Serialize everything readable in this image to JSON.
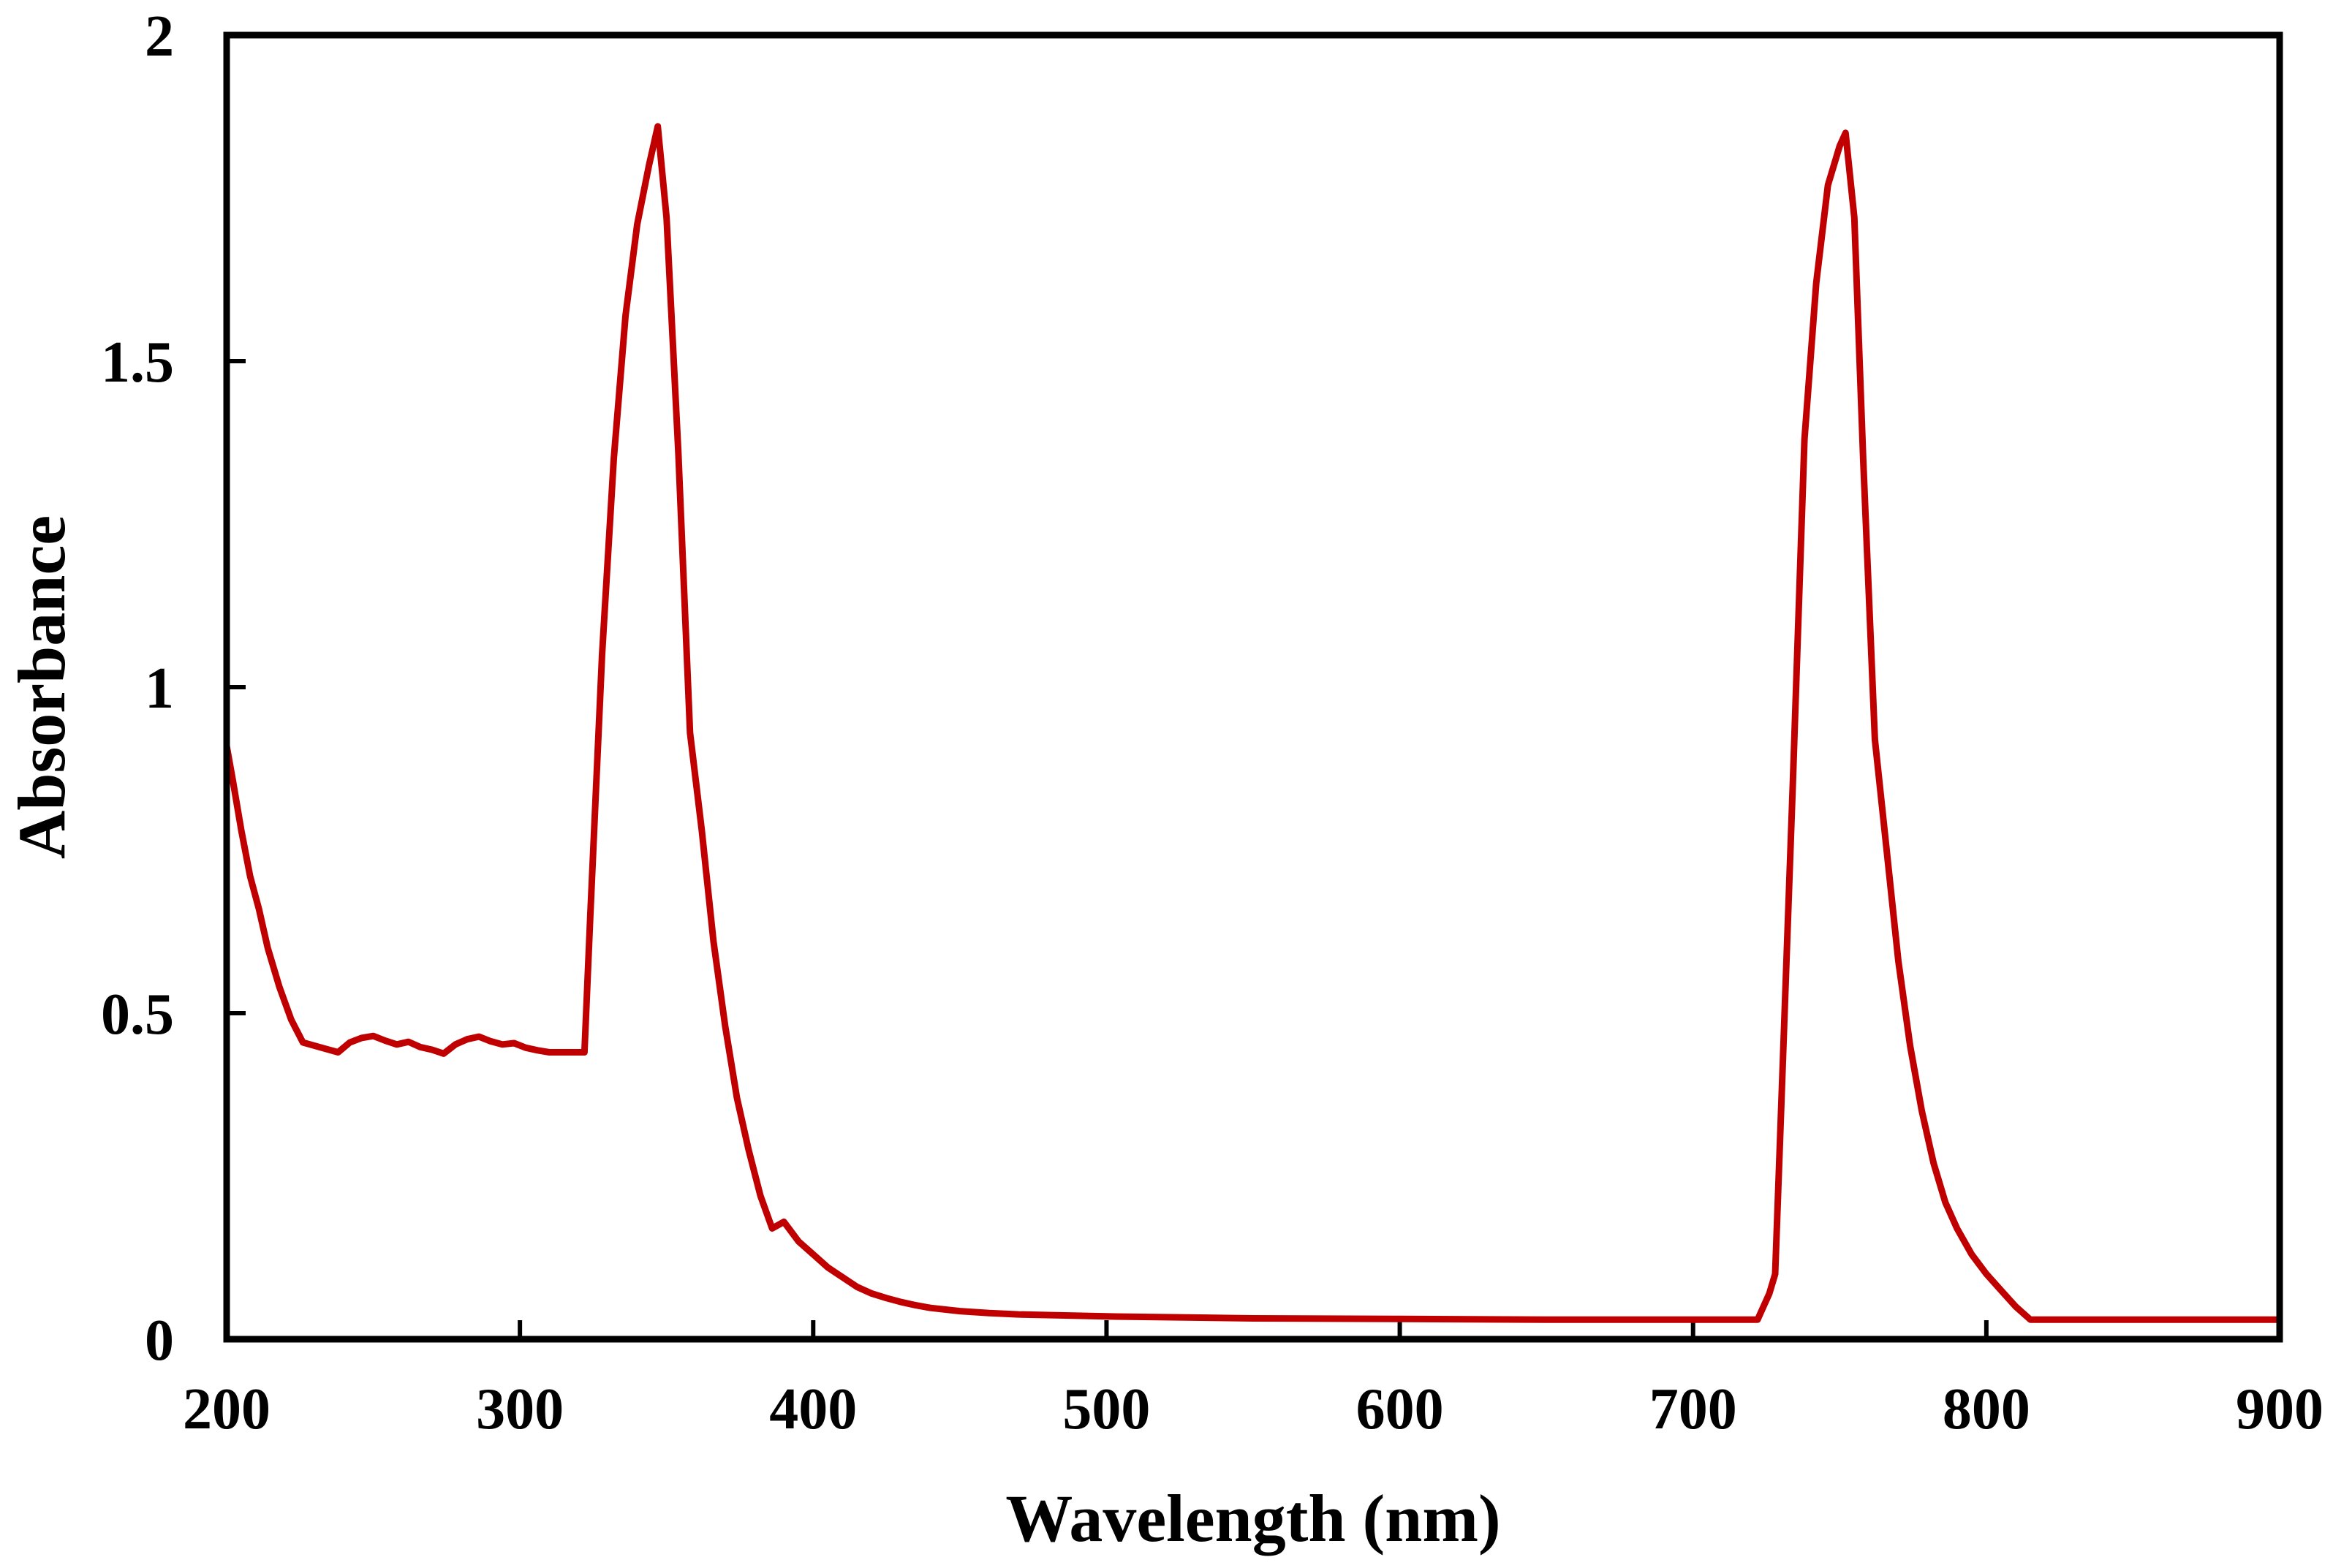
{
  "chart_data": {
    "type": "line",
    "title": "",
    "xlabel": "Wavelength (nm)",
    "ylabel": "Absorbance",
    "xlim": [
      200,
      900
    ],
    "ylim": [
      0,
      2
    ],
    "xticks": [
      200,
      300,
      400,
      500,
      600,
      700,
      800,
      900
    ],
    "yticks": [
      0,
      0.5,
      1,
      1.5,
      2
    ],
    "xtick_labels": [
      "200",
      "300",
      "400",
      "500",
      "600",
      "700",
      "800",
      "900"
    ],
    "ytick_labels": [
      "0",
      "0.5",
      "1",
      "1.5",
      "2"
    ],
    "grid": false,
    "legend": "none",
    "series": [
      {
        "name": "Absorbance",
        "color": "#c00000",
        "x": [
          200,
          202,
          205,
          208,
          211,
          214,
          218,
          222,
          226,
          230,
          234,
          238,
          242,
          246,
          250,
          254,
          258,
          262,
          266,
          270,
          274,
          278,
          282,
          286,
          290,
          294,
          298,
          302,
          306,
          310,
          314,
          318,
          322,
          324,
          328,
          332,
          336,
          340,
          344,
          347,
          350,
          354,
          358,
          362,
          366,
          370,
          374,
          378,
          382,
          386,
          390,
          395,
          400,
          405,
          410,
          415,
          420,
          425,
          430,
          435,
          440,
          450,
          460,
          470,
          480,
          500,
          550,
          600,
          650,
          700,
          722,
          726,
          728,
          730,
          734,
          738,
          742,
          746,
          750,
          752,
          755,
          758,
          762,
          766,
          770,
          774,
          778,
          782,
          786,
          790,
          795,
          800,
          805,
          810,
          815,
          818,
          850,
          900
        ],
        "y": [
          0.91,
          0.86,
          0.78,
          0.71,
          0.66,
          0.6,
          0.54,
          0.49,
          0.455,
          0.45,
          0.445,
          0.44,
          0.455,
          0.462,
          0.465,
          0.458,
          0.452,
          0.456,
          0.448,
          0.444,
          0.438,
          0.452,
          0.46,
          0.464,
          0.457,
          0.452,
          0.454,
          0.447,
          0.443,
          0.44,
          0.44,
          0.44,
          0.44,
          0.65,
          1.05,
          1.35,
          1.57,
          1.71,
          1.8,
          1.86,
          1.72,
          1.36,
          0.93,
          0.78,
          0.61,
          0.48,
          0.37,
          0.29,
          0.22,
          0.17,
          0.18,
          0.15,
          0.13,
          0.11,
          0.095,
          0.08,
          0.07,
          0.063,
          0.057,
          0.052,
          0.048,
          0.043,
          0.04,
          0.038,
          0.037,
          0.035,
          0.032,
          0.031,
          0.03,
          0.03,
          0.03,
          0.07,
          0.1,
          0.35,
          0.85,
          1.38,
          1.62,
          1.77,
          1.83,
          1.85,
          1.72,
          1.35,
          0.92,
          0.75,
          0.58,
          0.45,
          0.35,
          0.27,
          0.21,
          0.17,
          0.13,
          0.1,
          0.075,
          0.05,
          0.03,
          0.03,
          0.03,
          0.03
        ]
      }
    ]
  }
}
